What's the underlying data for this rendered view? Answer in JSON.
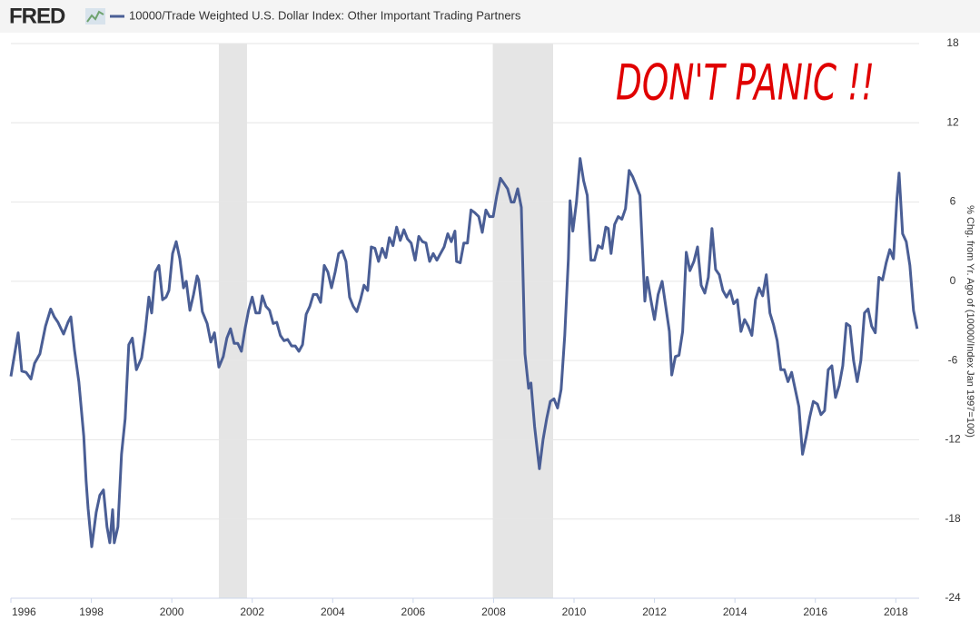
{
  "logo": "FRED",
  "chart_data": {
    "type": "line",
    "title": "10000/Trade Weighted U.S. Dollar Index: Other Important Trading Partners",
    "y_label": "% Chg. from Yr. Ago of (10000/Index Jan 1997=100)",
    "annotation": "DON'T PANIC !!",
    "xlim": [
      1996,
      2018.58
    ],
    "xticks": [
      1996,
      1998,
      2000,
      2002,
      2004,
      2006,
      2008,
      2010,
      2012,
      2014,
      2016,
      2018
    ],
    "ylim": [
      -24,
      18
    ],
    "yticks": [
      18,
      12,
      6,
      0,
      -6,
      -12,
      -18,
      -24
    ],
    "grid": true,
    "recessions": [
      [
        2001.17,
        2001.87
      ],
      [
        2007.98,
        2009.48
      ]
    ],
    "x": [
      1996.0,
      1996.18,
      1996.27,
      1996.38,
      1996.5,
      1996.59,
      1996.72,
      1996.86,
      1996.99,
      1997.08,
      1997.17,
      1997.31,
      1997.42,
      1997.49,
      1997.58,
      1997.69,
      1997.81,
      1997.87,
      1997.92,
      1998.01,
      1998.12,
      1998.21,
      1998.3,
      1998.39,
      1998.46,
      1998.53,
      1998.57,
      1998.66,
      1998.75,
      1998.84,
      1998.93,
      1999.02,
      1999.12,
      1999.25,
      1999.34,
      1999.43,
      1999.5,
      1999.59,
      1999.68,
      1999.77,
      1999.86,
      1999.93,
      2000.02,
      2000.11,
      2000.2,
      2000.29,
      2000.36,
      2000.45,
      2000.54,
      2000.63,
      2000.67,
      2000.76,
      2000.88,
      2000.97,
      2001.06,
      2001.17,
      2001.28,
      2001.37,
      2001.46,
      2001.55,
      2001.64,
      2001.73,
      2001.82,
      2001.91,
      2002.0,
      2002.09,
      2002.18,
      2002.25,
      2002.34,
      2002.43,
      2002.52,
      2002.61,
      2002.7,
      2002.79,
      2002.88,
      2002.98,
      2003.07,
      2003.16,
      2003.25,
      2003.34,
      2003.43,
      2003.52,
      2003.61,
      2003.7,
      2003.79,
      2003.88,
      2003.97,
      2004.06,
      2004.15,
      2004.24,
      2004.33,
      2004.42,
      2004.51,
      2004.6,
      2004.69,
      2004.78,
      2004.87,
      2004.96,
      2005.05,
      2005.14,
      2005.23,
      2005.32,
      2005.41,
      2005.5,
      2005.59,
      2005.68,
      2005.77,
      2005.86,
      2005.95,
      2006.05,
      2006.14,
      2006.23,
      2006.32,
      2006.41,
      2006.5,
      2006.59,
      2006.68,
      2006.77,
      2006.86,
      2006.95,
      2007.04,
      2007.08,
      2007.17,
      2007.26,
      2007.35,
      2007.44,
      2007.53,
      2007.63,
      2007.72,
      2007.81,
      2007.9,
      2007.99,
      2008.08,
      2008.17,
      2008.26,
      2008.35,
      2008.44,
      2008.51,
      2008.6,
      2008.69,
      2008.78,
      2008.87,
      2008.93,
      2009.02,
      2009.14,
      2009.23,
      2009.32,
      2009.41,
      2009.5,
      2009.59,
      2009.68,
      2009.77,
      2009.86,
      2009.9,
      2009.97,
      2010.06,
      2010.15,
      2010.24,
      2010.33,
      2010.42,
      2010.51,
      2010.6,
      2010.7,
      2010.79,
      2010.85,
      2010.92,
      2011.01,
      2011.1,
      2011.19,
      2011.28,
      2011.37,
      2011.46,
      2011.55,
      2011.64,
      2011.76,
      2011.82,
      2011.91,
      2012.0,
      2012.09,
      2012.19,
      2012.28,
      2012.37,
      2012.43,
      2012.52,
      2012.61,
      2012.7,
      2012.79,
      2012.88,
      2012.98,
      2013.07,
      2013.16,
      2013.25,
      2013.34,
      2013.43,
      2013.52,
      2013.61,
      2013.7,
      2013.79,
      2013.88,
      2013.97,
      2014.06,
      2014.15,
      2014.24,
      2014.33,
      2014.42,
      2014.51,
      2014.6,
      2014.69,
      2014.78,
      2014.87,
      2014.96,
      2015.05,
      2015.14,
      2015.23,
      2015.32,
      2015.41,
      2015.5,
      2015.59,
      2015.68,
      2015.77,
      2015.86,
      2015.95,
      2016.05,
      2016.14,
      2016.23,
      2016.32,
      2016.41,
      2016.5,
      2016.59,
      2016.68,
      2016.77,
      2016.86,
      2016.95,
      2017.04,
      2017.13,
      2017.22,
      2017.31,
      2017.4,
      2017.49,
      2017.58,
      2017.67,
      2017.76,
      2017.85,
      2017.94,
      2018.03,
      2018.08,
      2018.17,
      2018.26,
      2018.35,
      2018.44,
      2018.53
    ],
    "series": [
      {
        "name": "10000/Trade Weighted U.S. Dollar Index: Other Important Trading Partners",
        "color": "#4a5e95",
        "values": [
          -7.2,
          -3.9,
          -6.8,
          -6.9,
          -7.4,
          -6.2,
          -5.5,
          -3.4,
          -2.1,
          -2.7,
          -3.1,
          -4.0,
          -3.1,
          -2.7,
          -5.2,
          -7.6,
          -11.7,
          -15.1,
          -17.2,
          -20.1,
          -17.5,
          -16.2,
          -15.8,
          -18.6,
          -19.8,
          -17.3,
          -19.8,
          -18.6,
          -13.1,
          -10.4,
          -4.8,
          -4.3,
          -6.7,
          -5.8,
          -3.8,
          -1.2,
          -2.4,
          0.7,
          1.2,
          -1.4,
          -1.2,
          -0.7,
          2.1,
          3.0,
          1.7,
          -0.5,
          0.0,
          -2.2,
          -1.0,
          0.4,
          0.1,
          -2.3,
          -3.2,
          -4.6,
          -3.9,
          -6.5,
          -5.7,
          -4.3,
          -3.6,
          -4.7,
          -4.7,
          -5.3,
          -3.6,
          -2.2,
          -1.2,
          -2.4,
          -2.4,
          -1.1,
          -1.9,
          -2.2,
          -3.2,
          -3.1,
          -4.1,
          -4.5,
          -4.4,
          -4.9,
          -4.9,
          -5.3,
          -4.8,
          -2.5,
          -1.9,
          -1.0,
          -1.0,
          -1.6,
          1.2,
          0.7,
          -0.5,
          0.7,
          2.1,
          2.3,
          1.5,
          -1.2,
          -1.9,
          -2.3,
          -1.4,
          -0.3,
          -0.7,
          2.6,
          2.5,
          1.5,
          2.5,
          1.8,
          3.3,
          2.7,
          4.1,
          3.1,
          3.9,
          3.2,
          2.9,
          1.6,
          3.4,
          3.0,
          2.9,
          1.5,
          2.1,
          1.6,
          2.1,
          2.6,
          3.6,
          3.0,
          3.8,
          1.5,
          1.4,
          2.9,
          2.9,
          5.4,
          5.2,
          4.9,
          3.7,
          5.4,
          4.9,
          4.9,
          6.5,
          7.8,
          7.4,
          7.0,
          6.0,
          6.0,
          7.0,
          5.6,
          -5.5,
          -8.1,
          -7.7,
          -11.0,
          -14.2,
          -12.0,
          -10.4,
          -9.1,
          -8.9,
          -9.6,
          -8.2,
          -4.1,
          1.7,
          6.1,
          3.8,
          6.0,
          9.3,
          7.6,
          6.5,
          1.6,
          1.6,
          2.7,
          2.5,
          4.1,
          4.0,
          2.1,
          4.3,
          4.9,
          4.7,
          5.5,
          8.4,
          7.9,
          7.2,
          6.5,
          -1.5,
          0.3,
          -1.4,
          -2.9,
          -1.0,
          0.0,
          -1.9,
          -3.8,
          -7.1,
          -5.7,
          -5.6,
          -3.8,
          2.2,
          0.8,
          1.5,
          2.6,
          -0.3,
          -0.9,
          0.3,
          4.0,
          0.9,
          0.5,
          -0.7,
          -1.2,
          -0.7,
          -1.7,
          -1.4,
          -3.8,
          -2.9,
          -3.4,
          -4.1,
          -1.4,
          -0.5,
          -1.1,
          0.5,
          -2.4,
          -3.3,
          -4.5,
          -6.7,
          -6.7,
          -7.6,
          -6.9,
          -8.2,
          -9.5,
          -13.1,
          -11.8,
          -10.3,
          -9.1,
          -9.3,
          -10.1,
          -9.8,
          -6.7,
          -6.4,
          -8.8,
          -7.9,
          -6.4,
          -3.2,
          -3.4,
          -6.0,
          -7.6,
          -6.0,
          -2.4,
          -2.1,
          -3.4,
          -3.9,
          0.3,
          0.1,
          1.4,
          2.4,
          1.7,
          6.3,
          8.2,
          3.6,
          3.0,
          1.2,
          -2.2,
          -3.6
        ]
      }
    ]
  }
}
